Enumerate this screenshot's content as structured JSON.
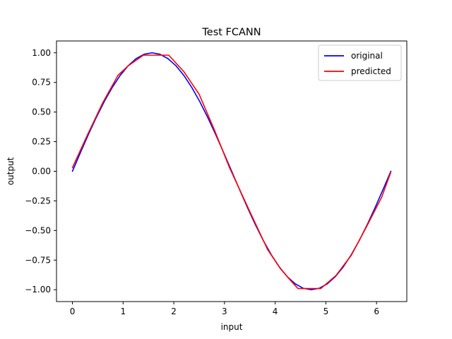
{
  "chart_data": {
    "type": "line",
    "title": "Test FCANN",
    "xlabel": "input",
    "ylabel": "output",
    "xlim": [
      -0.314,
      6.597
    ],
    "ylim": [
      -1.1,
      1.1
    ],
    "x_ticks": [
      0,
      1,
      2,
      3,
      4,
      5,
      6
    ],
    "x_tick_labels": [
      "0",
      "1",
      "2",
      "3",
      "4",
      "5",
      "6"
    ],
    "y_ticks": [
      -1.0,
      -0.75,
      -0.5,
      -0.25,
      0.0,
      0.25,
      0.5,
      0.75,
      1.0
    ],
    "y_tick_labels": [
      "−1.00",
      "−0.75",
      "−0.50",
      "−0.25",
      "0.00",
      "0.25",
      "0.50",
      "0.75",
      "1.00"
    ],
    "grid": false,
    "legend_position": "top-right",
    "series": [
      {
        "name": "original",
        "color": "#0000ff",
        "x": [
          0.0,
          0.157,
          0.314,
          0.471,
          0.628,
          0.785,
          0.942,
          1.1,
          1.257,
          1.414,
          1.571,
          1.728,
          1.885,
          2.042,
          2.199,
          2.356,
          2.513,
          2.67,
          2.827,
          2.985,
          3.142,
          3.299,
          3.456,
          3.613,
          3.77,
          3.927,
          4.084,
          4.241,
          4.398,
          4.555,
          4.712,
          4.869,
          5.027,
          5.184,
          5.341,
          5.498,
          5.655,
          5.812,
          5.969,
          6.126,
          6.283
        ],
        "y": [
          0.0,
          0.156,
          0.309,
          0.454,
          0.588,
          0.707,
          0.809,
          0.891,
          0.951,
          0.988,
          1.0,
          0.988,
          0.951,
          0.891,
          0.809,
          0.707,
          0.588,
          0.454,
          0.309,
          0.156,
          0.0,
          -0.156,
          -0.309,
          -0.454,
          -0.588,
          -0.707,
          -0.809,
          -0.891,
          -0.951,
          -0.988,
          -1.0,
          -0.988,
          -0.951,
          -0.891,
          -0.809,
          -0.707,
          -0.588,
          -0.454,
          -0.309,
          -0.156,
          0.0
        ]
      },
      {
        "name": "predicted",
        "color": "#ff0000",
        "x": [
          0.0,
          0.3,
          0.6,
          0.9,
          1.1,
          1.4,
          1.6,
          1.9,
          2.2,
          2.5,
          2.8,
          3.1,
          3.5,
          3.85,
          4.1,
          4.3,
          4.45,
          4.6,
          4.75,
          4.9,
          5.2,
          5.5,
          5.8,
          6.1,
          6.28
        ],
        "y": [
          0.03,
          0.31,
          0.58,
          0.81,
          0.89,
          0.98,
          0.98,
          0.98,
          0.84,
          0.65,
          0.35,
          0.03,
          -0.34,
          -0.66,
          -0.82,
          -0.92,
          -0.99,
          -0.99,
          -0.99,
          -0.99,
          -0.88,
          -0.71,
          -0.47,
          -0.22,
          -0.01
        ]
      }
    ]
  }
}
